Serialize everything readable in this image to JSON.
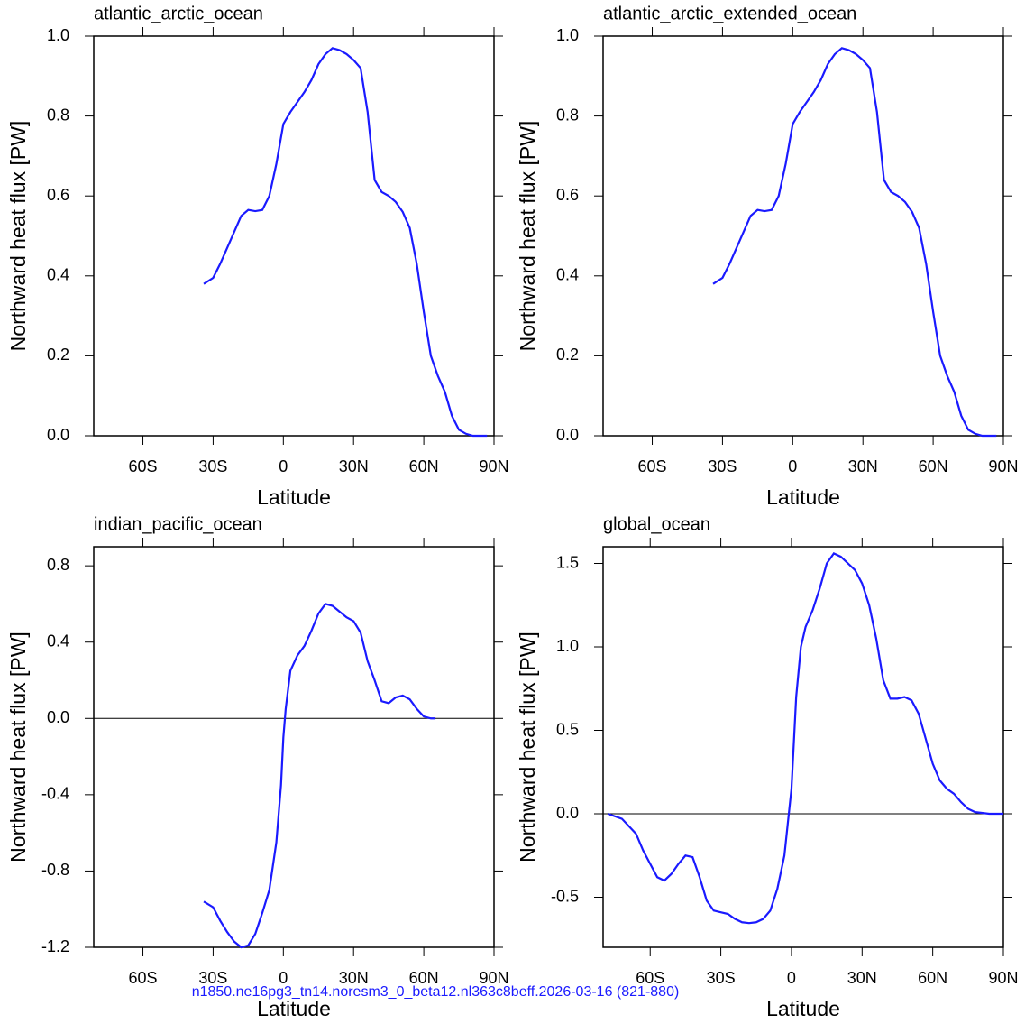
{
  "chart_data": [
    {
      "type": "line",
      "title": "atlantic_arctic_ocean",
      "x_label": "Latitude",
      "y_label": "Northward heat flux [PW]",
      "xlim": [
        -81,
        90
      ],
      "xticks": [
        {
          "value": -60,
          "label": "60S"
        },
        {
          "value": -30,
          "label": "30S"
        },
        0,
        {
          "value": 30,
          "label": "30N"
        },
        {
          "value": 60,
          "label": "60N"
        },
        {
          "value": 90,
          "label": "90N"
        }
      ],
      "ylim": [
        0,
        1
      ],
      "yticks": [
        {
          "value": 0,
          "label": "0.0"
        },
        0.2,
        0.4,
        0.6,
        0.8,
        {
          "value": 1,
          "label": "1.0"
        }
      ],
      "x": [
        -34,
        -30,
        -27,
        -24,
        -21,
        -18,
        -15,
        -12,
        -9,
        -6,
        -3,
        0,
        3,
        6,
        9,
        12,
        15,
        18,
        21,
        24,
        27,
        30,
        33,
        36,
        39,
        42,
        45,
        48,
        51,
        54,
        57,
        60,
        63,
        66,
        69,
        72,
        75,
        78,
        81,
        84,
        87
      ],
      "series": [
        {
          "color": "#1a1aff",
          "values": [
            0.38,
            0.395,
            0.43,
            0.47,
            0.51,
            0.55,
            0.565,
            0.562,
            0.565,
            0.6,
            0.68,
            0.78,
            0.81,
            0.835,
            0.86,
            0.89,
            0.93,
            0.955,
            0.97,
            0.965,
            0.955,
            0.94,
            0.92,
            0.81,
            0.64,
            0.61,
            0.6,
            0.585,
            0.56,
            0.52,
            0.43,
            0.31,
            0.2,
            0.15,
            0.11,
            0.05,
            0.015,
            0.005,
            0,
            0,
            0
          ]
        }
      ]
    },
    {
      "type": "line",
      "title": "atlantic_arctic_extended_ocean",
      "x_label": "Latitude",
      "y_label": "Northward heat flux [PW]",
      "xlim": [
        -81,
        90
      ],
      "xticks": [
        {
          "value": -60,
          "label": "60S"
        },
        {
          "value": -30,
          "label": "30S"
        },
        0,
        {
          "value": 30,
          "label": "30N"
        },
        {
          "value": 60,
          "label": "60N"
        },
        {
          "value": 90,
          "label": "90N"
        }
      ],
      "ylim": [
        0,
        1
      ],
      "yticks": [
        {
          "value": 0,
          "label": "0.0"
        },
        0.2,
        0.4,
        0.6,
        0.8,
        {
          "value": 1,
          "label": "1.0"
        }
      ],
      "x": [
        -34,
        -30,
        -27,
        -24,
        -21,
        -18,
        -15,
        -12,
        -9,
        -6,
        -3,
        0,
        3,
        6,
        9,
        12,
        15,
        18,
        21,
        24,
        27,
        30,
        33,
        36,
        39,
        42,
        45,
        48,
        51,
        54,
        57,
        60,
        63,
        66,
        69,
        72,
        75,
        78,
        81,
        84,
        87
      ],
      "series": [
        {
          "color": "#1a1aff",
          "values": [
            0.38,
            0.395,
            0.43,
            0.47,
            0.51,
            0.55,
            0.565,
            0.562,
            0.565,
            0.6,
            0.68,
            0.78,
            0.81,
            0.835,
            0.86,
            0.89,
            0.93,
            0.955,
            0.97,
            0.965,
            0.955,
            0.94,
            0.92,
            0.81,
            0.64,
            0.61,
            0.6,
            0.585,
            0.56,
            0.52,
            0.43,
            0.31,
            0.2,
            0.15,
            0.11,
            0.05,
            0.015,
            0.005,
            0,
            0,
            0
          ]
        }
      ]
    },
    {
      "type": "line",
      "title": "indian_pacific_ocean",
      "x_label": "Latitude",
      "y_label": "Northward heat flux [PW]",
      "xlim": [
        -81,
        90
      ],
      "xticks": [
        {
          "value": -60,
          "label": "60S"
        },
        {
          "value": -30,
          "label": "30S"
        },
        0,
        {
          "value": 30,
          "label": "30N"
        },
        {
          "value": 60,
          "label": "60N"
        },
        {
          "value": 90,
          "label": "90N"
        }
      ],
      "ylim": [
        -1.2,
        0.9
      ],
      "yticks": [
        -1.2,
        -0.8,
        -0.4,
        {
          "value": 0,
          "label": "0.0"
        },
        0.4,
        0.8
      ],
      "hline": 0,
      "x": [
        -34,
        -30,
        -27,
        -24,
        -21,
        -18,
        -15,
        -12,
        -9,
        -6,
        -3,
        -1,
        0,
        1,
        3,
        6,
        9,
        12,
        15,
        18,
        21,
        24,
        27,
        30,
        33,
        36,
        39,
        42,
        45,
        48,
        51,
        54,
        57,
        60,
        63,
        65
      ],
      "series": [
        {
          "color": "#1a1aff",
          "values": [
            -0.96,
            -0.99,
            -1.06,
            -1.12,
            -1.17,
            -1.2,
            -1.19,
            -1.13,
            -1.02,
            -0.9,
            -0.65,
            -0.35,
            -0.1,
            0.05,
            0.25,
            0.33,
            0.38,
            0.46,
            0.55,
            0.6,
            0.59,
            0.56,
            0.53,
            0.51,
            0.45,
            0.3,
            0.2,
            0.09,
            0.08,
            0.11,
            0.12,
            0.1,
            0.05,
            0.01,
            0,
            0
          ]
        }
      ]
    },
    {
      "type": "line",
      "title": "global_ocean",
      "x_label": "Latitude",
      "y_label": "Northward heat flux [PW]",
      "xlim": [
        -80,
        90
      ],
      "xticks": [
        {
          "value": -60,
          "label": "60S"
        },
        {
          "value": -30,
          "label": "30S"
        },
        0,
        {
          "value": 30,
          "label": "30N"
        },
        {
          "value": 60,
          "label": "60N"
        },
        {
          "value": 90,
          "label": "90N"
        }
      ],
      "ylim": [
        -0.8,
        1.6
      ],
      "yticks": [
        -0.5,
        {
          "value": 0,
          "label": "0.0"
        },
        0.5,
        {
          "value": 1,
          "label": "1.0"
        },
        1.5
      ],
      "hline": 0,
      "x": [
        -78,
        -72,
        -66,
        -63,
        -60,
        -57,
        -54,
        -51,
        -48,
        -45,
        -42,
        -39,
        -36,
        -33,
        -30,
        -27,
        -24,
        -21,
        -18,
        -15,
        -12,
        -9,
        -6,
        -3,
        0,
        2,
        4,
        6,
        9,
        12,
        15,
        18,
        21,
        24,
        27,
        30,
        33,
        36,
        39,
        42,
        45,
        48,
        51,
        54,
        57,
        60,
        63,
        66,
        69,
        72,
        75,
        78,
        84,
        90
      ],
      "series": [
        {
          "color": "#1a1aff",
          "values": [
            0,
            -0.03,
            -0.12,
            -0.22,
            -0.3,
            -0.38,
            -0.4,
            -0.36,
            -0.3,
            -0.25,
            -0.26,
            -0.38,
            -0.52,
            -0.58,
            -0.59,
            -0.6,
            -0.63,
            -0.65,
            -0.655,
            -0.65,
            -0.63,
            -0.58,
            -0.45,
            -0.25,
            0.15,
            0.7,
            1.0,
            1.12,
            1.22,
            1.35,
            1.5,
            1.56,
            1.54,
            1.5,
            1.46,
            1.38,
            1.25,
            1.05,
            0.8,
            0.69,
            0.69,
            0.7,
            0.68,
            0.6,
            0.45,
            0.3,
            0.2,
            0.15,
            0.12,
            0.07,
            0.03,
            0.01,
            0,
            0
          ]
        }
      ]
    }
  ],
  "footer": "n1850.ne16pg3_tn14.noresm3_0_beta12.nl363c8beff.2026-03-16 (821-880)"
}
